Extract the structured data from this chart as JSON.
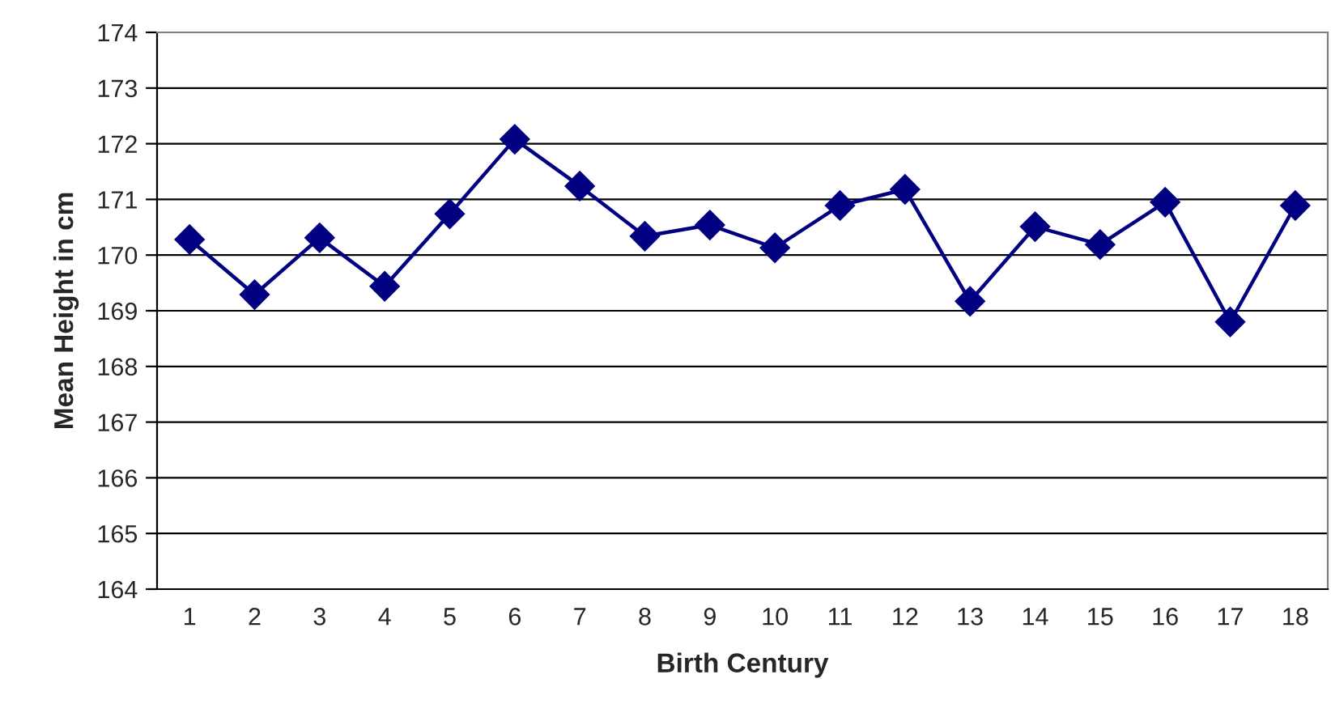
{
  "chart_data": {
    "type": "line",
    "xlabel": "Birth Century",
    "ylabel": "Mean Height in cm",
    "categories": [
      "1",
      "2",
      "3",
      "4",
      "5",
      "6",
      "7",
      "8",
      "9",
      "10",
      "11",
      "12",
      "13",
      "14",
      "15",
      "16",
      "17",
      "18"
    ],
    "series": [
      {
        "color": "#000080",
        "values": [
          170.28,
          169.29,
          170.31,
          169.44,
          170.74,
          172.08,
          171.24,
          170.34,
          170.54,
          170.13,
          170.89,
          171.18,
          169.17,
          170.51,
          170.19,
          170.95,
          168.8,
          170.89
        ]
      }
    ],
    "ylim": [
      164,
      174
    ],
    "yticks": [
      164,
      165,
      166,
      167,
      168,
      169,
      170,
      171,
      172,
      173,
      174
    ],
    "grid": "y",
    "marker": "diamond",
    "line_style": "solid",
    "legend": false
  }
}
